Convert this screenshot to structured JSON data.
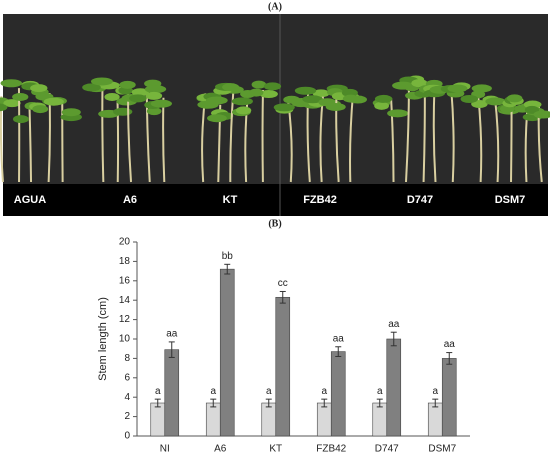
{
  "figure_labels": [
    "(A)",
    "(B)"
  ],
  "photo": {
    "labels": [
      "AGUA",
      "A6",
      "KT",
      "FZB42",
      "D747",
      "DSM7"
    ]
  },
  "chart_data": {
    "type": "bar",
    "ylabel": "Stem length (cm)",
    "categories": [
      "NI",
      "A6",
      "KT",
      "FZB42",
      "D747",
      "DSM7"
    ],
    "series": [
      {
        "color": "#d9d9d9",
        "values": [
          3.4,
          3.4,
          3.4,
          3.4,
          3.4,
          3.4
        ],
        "errors": [
          0.4,
          0.4,
          0.4,
          0.4,
          0.4,
          0.4
        ],
        "labels": [
          "a",
          "a",
          "a",
          "a",
          "a",
          "a"
        ]
      },
      {
        "color": "#808080",
        "values": [
          8.9,
          17.2,
          14.3,
          8.7,
          10.0,
          8.0
        ],
        "errors": [
          0.8,
          0.5,
          0.6,
          0.5,
          0.7,
          0.6
        ],
        "labels": [
          "aa",
          "bb",
          "cc",
          "aa",
          "aa",
          "aa"
        ]
      }
    ],
    "ylim": [
      0,
      20
    ],
    "yticks": [
      0,
      2,
      4,
      6,
      8,
      10,
      12,
      14,
      16,
      18,
      20
    ]
  }
}
